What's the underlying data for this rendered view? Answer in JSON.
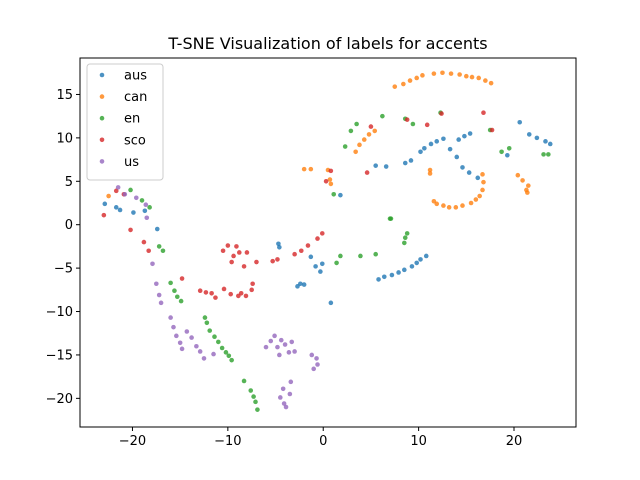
{
  "chart_data": {
    "type": "scatter",
    "title": "T-SNE Visualization of labels for accents",
    "xlabel": "",
    "ylabel": "",
    "xlim": [
      -25.5,
      26.5
    ],
    "ylim": [
      -23.3,
      19.2
    ],
    "xticks": [
      -20,
      -10,
      0,
      10,
      20
    ],
    "yticks": [
      -20,
      -15,
      -10,
      -5,
      0,
      5,
      10,
      15
    ],
    "grid": false,
    "legend_position": "top-left",
    "series": [
      {
        "name": "aus",
        "color": "#1f77b4",
        "points": [
          [
            -22.9,
            2.4
          ],
          [
            -21.7,
            2.0
          ],
          [
            -21.3,
            1.7
          ],
          [
            -19.9,
            1.4
          ],
          [
            -18.7,
            1.6
          ],
          [
            -17.4,
            -0.5
          ],
          [
            -4.7,
            -2.2
          ],
          [
            -4.6,
            -2.6
          ],
          [
            -2.7,
            -7.1
          ],
          [
            -2.4,
            -6.8
          ],
          [
            -2.0,
            -6.9
          ],
          [
            -1.3,
            -3.7
          ],
          [
            -0.8,
            -4.8
          ],
          [
            -0.3,
            -5.4
          ],
          [
            -0.1,
            -4.5
          ],
          [
            0.8,
            -9.0
          ],
          [
            1.8,
            3.4
          ],
          [
            5.5,
            6.8
          ],
          [
            6.6,
            6.7
          ],
          [
            5.8,
            -6.3
          ],
          [
            6.4,
            -6.0
          ],
          [
            7.2,
            -5.8
          ],
          [
            7.9,
            -5.5
          ],
          [
            8.5,
            -5.2
          ],
          [
            9.3,
            -4.8
          ],
          [
            9.8,
            -4.4
          ],
          [
            10.2,
            -4.0
          ],
          [
            10.8,
            -3.6
          ],
          [
            8.6,
            7.1
          ],
          [
            9.2,
            7.4
          ],
          [
            10.2,
            8.4
          ],
          [
            10.6,
            8.8
          ],
          [
            11.3,
            9.3
          ],
          [
            11.9,
            9.6
          ],
          [
            12.6,
            9.9
          ],
          [
            13.3,
            8.7
          ],
          [
            14.0,
            7.8
          ],
          [
            14.2,
            9.8
          ],
          [
            14.8,
            10.2
          ],
          [
            15.4,
            10.5
          ],
          [
            14.6,
            6.6
          ],
          [
            15.3,
            6.0
          ],
          [
            16.2,
            5.4
          ],
          [
            19.3,
            8.0
          ],
          [
            20.6,
            11.8
          ],
          [
            21.6,
            10.4
          ],
          [
            22.4,
            10.0
          ],
          [
            23.3,
            9.6
          ],
          [
            23.8,
            9.3
          ]
        ]
      },
      {
        "name": "can",
        "color": "#ff7f0e",
        "points": [
          [
            -22.5,
            3.3
          ],
          [
            -2.0,
            6.4
          ],
          [
            -1.3,
            6.4
          ],
          [
            0.5,
            6.3
          ],
          [
            0.7,
            5.2
          ],
          [
            0.8,
            4.7
          ],
          [
            3.4,
            8.4
          ],
          [
            3.8,
            9.2
          ],
          [
            4.3,
            9.8
          ],
          [
            4.8,
            10.4
          ],
          [
            5.4,
            10.8
          ],
          [
            7.5,
            15.9
          ],
          [
            8.4,
            16.2
          ],
          [
            9.1,
            16.6
          ],
          [
            9.8,
            16.9
          ],
          [
            10.4,
            17.2
          ],
          [
            11.6,
            17.4
          ],
          [
            12.5,
            17.5
          ],
          [
            13.4,
            17.4
          ],
          [
            14.3,
            17.3
          ],
          [
            15.0,
            17.1
          ],
          [
            15.6,
            17.0
          ],
          [
            16.3,
            16.9
          ],
          [
            17.0,
            16.6
          ],
          [
            17.6,
            16.3
          ],
          [
            11.2,
            6.3
          ],
          [
            11.2,
            5.9
          ],
          [
            11.6,
            2.7
          ],
          [
            11.9,
            2.4
          ],
          [
            12.6,
            2.2
          ],
          [
            13.2,
            2.0
          ],
          [
            13.9,
            2.0
          ],
          [
            14.6,
            2.2
          ],
          [
            15.5,
            2.5
          ],
          [
            16.0,
            2.9
          ],
          [
            16.4,
            3.3
          ],
          [
            16.7,
            4.0
          ],
          [
            16.8,
            4.9
          ],
          [
            16.7,
            5.8
          ],
          [
            20.4,
            5.7
          ],
          [
            20.9,
            5.1
          ],
          [
            21.3,
            4.0
          ],
          [
            21.4,
            3.7
          ],
          [
            21.5,
            4.5
          ]
        ]
      },
      {
        "name": "en",
        "color": "#2ca02c",
        "points": [
          [
            -20.2,
            4.0
          ],
          [
            -19.0,
            2.8
          ],
          [
            -18.2,
            2.0
          ],
          [
            -17.2,
            -2.5
          ],
          [
            -16.8,
            -3.0
          ],
          [
            -16.0,
            -6.7
          ],
          [
            -15.6,
            -7.6
          ],
          [
            -15.3,
            -8.3
          ],
          [
            -14.9,
            -8.8
          ],
          [
            -12.4,
            -10.7
          ],
          [
            -12.2,
            -11.3
          ],
          [
            -11.9,
            -12.2
          ],
          [
            -11.4,
            -12.9
          ],
          [
            -11.0,
            -13.5
          ],
          [
            -10.6,
            -14.2
          ],
          [
            -10.2,
            -14.7
          ],
          [
            -9.9,
            -15.1
          ],
          [
            -9.6,
            -15.6
          ],
          [
            -8.3,
            -18.0
          ],
          [
            -7.6,
            -19.1
          ],
          [
            -7.3,
            -19.8
          ],
          [
            -7.1,
            -20.4
          ],
          [
            -6.9,
            -21.3
          ],
          [
            1.1,
            3.5
          ],
          [
            1.4,
            -4.4
          ],
          [
            1.8,
            -3.6
          ],
          [
            2.3,
            9.0
          ],
          [
            2.9,
            10.8
          ],
          [
            3.5,
            11.6
          ],
          [
            3.9,
            -3.6
          ],
          [
            5.5,
            -3.4
          ],
          [
            6.2,
            12.5
          ],
          [
            7.0,
            0.7
          ],
          [
            7.1,
            0.7
          ],
          [
            8.5,
            -2.1
          ],
          [
            8.6,
            -1.5
          ],
          [
            8.8,
            -1.0
          ],
          [
            8.6,
            12.2
          ],
          [
            9.4,
            11.6
          ],
          [
            12.3,
            12.9
          ],
          [
            17.5,
            10.9
          ],
          [
            18.7,
            8.4
          ],
          [
            19.5,
            8.8
          ],
          [
            23.1,
            8.1
          ],
          [
            23.6,
            8.1
          ]
        ]
      },
      {
        "name": "sco",
        "color": "#d62728",
        "points": [
          [
            -23.0,
            1.1
          ],
          [
            -20.9,
            3.5
          ],
          [
            -21.7,
            3.9
          ],
          [
            -20.2,
            -0.6
          ],
          [
            -18.8,
            -2.0
          ],
          [
            -18.3,
            -3.0
          ],
          [
            -14.8,
            -6.2
          ],
          [
            -12.9,
            -7.6
          ],
          [
            -12.3,
            -7.8
          ],
          [
            -11.7,
            -7.9
          ],
          [
            -11.3,
            -8.4
          ],
          [
            -10.4,
            -7.4
          ],
          [
            -9.7,
            -8.0
          ],
          [
            -8.9,
            -8.2
          ],
          [
            -8.6,
            -7.9
          ],
          [
            -8.1,
            -8.2
          ],
          [
            -7.5,
            -7.5
          ],
          [
            -7.4,
            -6.8
          ],
          [
            -10.5,
            -3.0
          ],
          [
            -10.0,
            -2.4
          ],
          [
            -9.6,
            -4.3
          ],
          [
            -9.4,
            -3.6
          ],
          [
            -9.1,
            -2.5
          ],
          [
            -8.8,
            -3.2
          ],
          [
            -8.3,
            -4.8
          ],
          [
            -8.0,
            -3.2
          ],
          [
            -7.0,
            -4.3
          ],
          [
            -5.3,
            -4.2
          ],
          [
            -4.8,
            -4.0
          ],
          [
            -3.0,
            -3.4
          ],
          [
            -2.3,
            -3.0
          ],
          [
            -1.6,
            -2.4
          ],
          [
            -0.6,
            -1.6
          ],
          [
            -0.1,
            -1.0
          ],
          [
            0.3,
            5.0
          ],
          [
            0.8,
            6.2
          ],
          [
            4.6,
            6.0
          ],
          [
            5.0,
            11.3
          ],
          [
            8.8,
            12.1
          ],
          [
            10.9,
            11.5
          ],
          [
            12.4,
            12.8
          ],
          [
            16.8,
            12.9
          ],
          [
            17.7,
            10.9
          ]
        ]
      },
      {
        "name": "us",
        "color": "#9467bd",
        "points": [
          [
            -21.5,
            4.3
          ],
          [
            -20.8,
            3.5
          ],
          [
            -19.6,
            3.1
          ],
          [
            -18.6,
            2.3
          ],
          [
            -18.5,
            0.8
          ],
          [
            -17.9,
            -4.5
          ],
          [
            -17.5,
            -6.8
          ],
          [
            -17.2,
            -8.1
          ],
          [
            -17.0,
            -9.0
          ],
          [
            -16.0,
            -10.7
          ],
          [
            -15.7,
            -11.8
          ],
          [
            -15.4,
            -12.8
          ],
          [
            -15.0,
            -13.6
          ],
          [
            -14.8,
            -14.3
          ],
          [
            -14.3,
            -12.3
          ],
          [
            -13.8,
            -13.0
          ],
          [
            -13.3,
            -14.0
          ],
          [
            -12.9,
            -14.6
          ],
          [
            -12.5,
            -15.4
          ],
          [
            -11.5,
            -14.9
          ],
          [
            -6.0,
            -14.1
          ],
          [
            -5.5,
            -13.4
          ],
          [
            -5.1,
            -12.8
          ],
          [
            -4.8,
            -14.1
          ],
          [
            -4.6,
            -15.0
          ],
          [
            -4.4,
            -13.3
          ],
          [
            -4.0,
            -13.8
          ],
          [
            -3.6,
            -14.7
          ],
          [
            -3.3,
            -13.5
          ],
          [
            -3.0,
            -14.6
          ],
          [
            -4.2,
            -18.9
          ],
          [
            -4.5,
            -19.9
          ],
          [
            -4.1,
            -20.6
          ],
          [
            -3.5,
            -19.5
          ],
          [
            -3.9,
            -21.0
          ],
          [
            -3.4,
            -18.1
          ],
          [
            -1.2,
            -15.0
          ],
          [
            -0.7,
            -15.4
          ],
          [
            -0.6,
            -16.1
          ],
          [
            -1.0,
            -16.6
          ]
        ]
      }
    ]
  }
}
